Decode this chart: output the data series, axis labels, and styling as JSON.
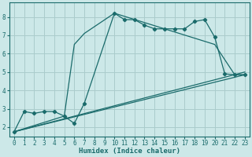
{
  "xlabel": "Humidex (Indice chaleur)",
  "bg_color": "#cce8e8",
  "grid_color": "#aacccc",
  "line_color": "#1a6b6b",
  "xlim": [
    -0.5,
    23.5
  ],
  "ylim": [
    1.5,
    8.8
  ],
  "xticks": [
    0,
    1,
    2,
    3,
    4,
    5,
    6,
    7,
    8,
    9,
    10,
    11,
    12,
    13,
    14,
    15,
    16,
    17,
    18,
    19,
    20,
    21,
    22,
    23
  ],
  "yticks": [
    2,
    3,
    4,
    5,
    6,
    7,
    8
  ],
  "series1_x": [
    0,
    1,
    2,
    3,
    4,
    5,
    6,
    7,
    10,
    11,
    12,
    13,
    14,
    15,
    16,
    17,
    18,
    19,
    20,
    21,
    22,
    23
  ],
  "series1_y": [
    1.75,
    2.85,
    2.75,
    2.85,
    2.85,
    2.6,
    2.2,
    3.3,
    8.2,
    7.85,
    7.85,
    7.55,
    7.35,
    7.35,
    7.35,
    7.35,
    7.75,
    7.85,
    6.9,
    4.9,
    4.85,
    4.85
  ],
  "series2_x": [
    0,
    5,
    6,
    7,
    10,
    20,
    22,
    23
  ],
  "series2_y": [
    1.75,
    2.6,
    6.5,
    7.1,
    8.2,
    6.5,
    4.85,
    4.85
  ],
  "series3_x": [
    0,
    23
  ],
  "series3_y": [
    1.75,
    4.85
  ],
  "series4_x": [
    0,
    23
  ],
  "series4_y": [
    1.75,
    5.0
  ]
}
